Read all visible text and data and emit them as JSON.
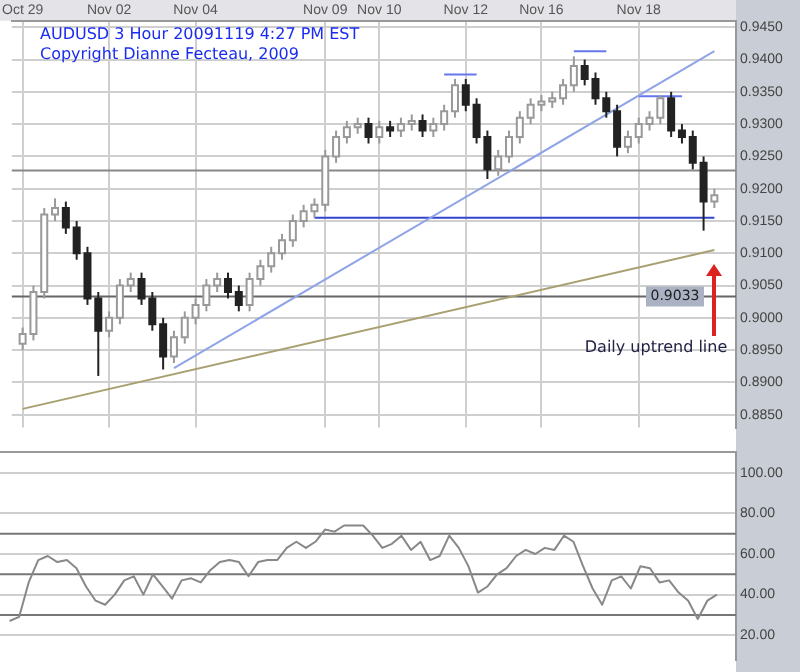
{
  "chart_data": [
    {
      "type": "candlestick",
      "title": "AUDUSD 3 Hour 20091119 4:27 PM EST",
      "subtitle": "Copyright Dianne Fecteau, 2009",
      "categories": [
        "Oct 29",
        null,
        null,
        null,
        null,
        null,
        null,
        null,
        "Nov 02",
        null,
        null,
        null,
        null,
        null,
        null,
        null,
        "Nov 04",
        null,
        null,
        null,
        null,
        null,
        null,
        null,
        null,
        null,
        null,
        null,
        "Nov 09",
        null,
        null,
        null,
        null,
        "Nov 10",
        null,
        null,
        null,
        null,
        null,
        null,
        null,
        "Nov 12",
        null,
        null,
        null,
        null,
        null,
        null,
        "Nov 16",
        null,
        null,
        null,
        null,
        null,
        null,
        null,
        null,
        "Nov 18",
        null,
        null,
        null,
        null,
        null,
        null,
        null
      ],
      "ohlc": [
        [
          0.896,
          0.8985,
          0.895,
          0.8975
        ],
        [
          0.8975,
          0.905,
          0.8965,
          0.904
        ],
        [
          0.904,
          0.917,
          0.903,
          0.916
        ],
        [
          0.916,
          0.9185,
          0.915,
          0.917
        ],
        [
          0.917,
          0.918,
          0.913,
          0.914
        ],
        [
          0.914,
          0.915,
          0.909,
          0.91
        ],
        [
          0.91,
          0.911,
          0.902,
          0.903
        ],
        [
          0.903,
          0.904,
          0.891,
          0.898
        ],
        [
          0.898,
          0.901,
          0.897,
          0.9
        ],
        [
          0.9,
          0.906,
          0.899,
          0.905
        ],
        [
          0.905,
          0.907,
          0.904,
          0.906
        ],
        [
          0.906,
          0.907,
          0.902,
          0.903
        ],
        [
          0.903,
          0.904,
          0.898,
          0.899
        ],
        [
          0.899,
          0.9,
          0.892,
          0.894
        ],
        [
          0.894,
          0.898,
          0.893,
          0.897
        ],
        [
          0.897,
          0.901,
          0.896,
          0.9
        ],
        [
          0.9,
          0.903,
          0.899,
          0.902
        ],
        [
          0.902,
          0.906,
          0.901,
          0.905
        ],
        [
          0.905,
          0.907,
          0.904,
          0.906
        ],
        [
          0.906,
          0.907,
          0.903,
          0.904
        ],
        [
          0.904,
          0.905,
          0.901,
          0.902
        ],
        [
          0.902,
          0.907,
          0.901,
          0.906
        ],
        [
          0.906,
          0.909,
          0.905,
          0.908
        ],
        [
          0.908,
          0.911,
          0.907,
          0.91
        ],
        [
          0.91,
          0.913,
          0.909,
          0.912
        ],
        [
          0.912,
          0.916,
          0.911,
          0.915
        ],
        [
          0.915,
          0.9175,
          0.914,
          0.9165
        ],
        [
          0.9165,
          0.9185,
          0.9155,
          0.9175
        ],
        [
          0.9175,
          0.926,
          0.9165,
          0.925
        ],
        [
          0.925,
          0.929,
          0.924,
          0.928
        ],
        [
          0.928,
          0.9305,
          0.927,
          0.9295
        ],
        [
          0.9295,
          0.931,
          0.9285,
          0.93
        ],
        [
          0.93,
          0.931,
          0.927,
          0.928
        ],
        [
          0.928,
          0.9305,
          0.927,
          0.9295
        ],
        [
          0.9295,
          0.9305,
          0.928,
          0.929
        ],
        [
          0.929,
          0.931,
          0.928,
          0.93
        ],
        [
          0.93,
          0.9315,
          0.929,
          0.9305
        ],
        [
          0.9305,
          0.9315,
          0.928,
          0.929
        ],
        [
          0.929,
          0.931,
          0.928,
          0.93
        ],
        [
          0.93,
          0.933,
          0.929,
          0.932
        ],
        [
          0.932,
          0.937,
          0.931,
          0.936
        ],
        [
          0.936,
          0.937,
          0.932,
          0.933
        ],
        [
          0.933,
          0.934,
          0.927,
          0.928
        ],
        [
          0.928,
          0.929,
          0.9215,
          0.923
        ],
        [
          0.923,
          0.926,
          0.922,
          0.925
        ],
        [
          0.925,
          0.929,
          0.924,
          0.928
        ],
        [
          0.928,
          0.932,
          0.927,
          0.931
        ],
        [
          0.931,
          0.934,
          0.93,
          0.933
        ],
        [
          0.933,
          0.9345,
          0.932,
          0.9335
        ],
        [
          0.9335,
          0.935,
          0.9325,
          0.934
        ],
        [
          0.934,
          0.937,
          0.933,
          0.936
        ],
        [
          0.936,
          0.9405,
          0.935,
          0.939
        ],
        [
          0.939,
          0.94,
          0.936,
          0.937
        ],
        [
          0.937,
          0.938,
          0.933,
          0.934
        ],
        [
          0.934,
          0.935,
          0.931,
          0.932
        ],
        [
          0.932,
          0.933,
          0.925,
          0.9265
        ],
        [
          0.9265,
          0.929,
          0.9255,
          0.928
        ],
        [
          0.928,
          0.931,
          0.927,
          0.93
        ],
        [
          0.93,
          0.932,
          0.929,
          0.931
        ],
        [
          0.931,
          0.9345,
          0.93,
          0.934
        ],
        [
          0.934,
          0.935,
          0.928,
          0.929
        ],
        [
          0.929,
          0.93,
          0.927,
          0.928
        ],
        [
          0.928,
          0.929,
          0.923,
          0.924
        ],
        [
          0.924,
          0.925,
          0.9135,
          0.918
        ],
        [
          0.918,
          0.92,
          0.917,
          0.919
        ]
      ],
      "series": [
        {
          "type": "line",
          "color": "#8fa4e8",
          "values": [
            null,
            null,
            null,
            null,
            null,
            null,
            null,
            null,
            null,
            null,
            null,
            null,
            null,
            null,
            0.8922,
            null,
            null,
            null,
            null,
            null,
            null,
            null,
            null,
            null,
            null,
            null,
            null,
            null,
            null,
            null,
            null,
            null,
            null,
            null,
            null,
            null,
            null,
            null,
            null,
            null,
            null,
            null,
            null,
            null,
            null,
            null,
            null,
            null,
            null,
            null,
            null,
            null,
            null,
            null,
            null,
            null,
            null,
            null,
            null,
            null,
            null,
            null,
            null,
            null,
            0.9413
          ]
        },
        {
          "type": "line",
          "color": "#a8a070",
          "values": [
            0.8859,
            null,
            null,
            null,
            null,
            null,
            null,
            null,
            null,
            null,
            null,
            null,
            null,
            null,
            null,
            null,
            null,
            null,
            null,
            null,
            null,
            null,
            null,
            null,
            null,
            null,
            null,
            null,
            null,
            null,
            null,
            null,
            null,
            null,
            null,
            null,
            null,
            null,
            null,
            null,
            null,
            null,
            null,
            null,
            null,
            null,
            null,
            null,
            null,
            null,
            null,
            null,
            null,
            null,
            null,
            null,
            null,
            null,
            null,
            null,
            null,
            null,
            null,
            null,
            0.9105
          ]
        },
        {
          "type": "line",
          "color": "#3344cc",
          "values": [
            null,
            null,
            null,
            null,
            null,
            null,
            null,
            null,
            null,
            null,
            null,
            null,
            null,
            null,
            null,
            null,
            null,
            null,
            null,
            null,
            null,
            null,
            null,
            null,
            null,
            null,
            null,
            0.9155,
            null,
            null,
            null,
            null,
            null,
            null,
            null,
            null,
            null,
            null,
            null,
            null,
            null,
            null,
            null,
            null,
            null,
            null,
            null,
            null,
            null,
            null,
            null,
            null,
            null,
            null,
            null,
            null,
            null,
            null,
            null,
            null,
            null,
            null,
            null,
            null,
            0.9155
          ]
        },
        {
          "type": "line",
          "color": "#6677ee",
          "values": [
            null,
            null,
            null,
            null,
            null,
            null,
            null,
            null,
            null,
            null,
            null,
            null,
            null,
            null,
            null,
            null,
            null,
            null,
            null,
            null,
            null,
            null,
            null,
            null,
            null,
            null,
            null,
            null,
            null,
            null,
            null,
            null,
            null,
            null,
            null,
            null,
            null,
            null,
            null,
            0.9377,
            null,
            null,
            0.9377,
            null,
            null,
            null,
            null,
            null,
            null,
            null,
            null,
            null,
            null,
            null,
            null,
            null,
            null,
            null,
            null,
            null,
            null,
            null,
            null,
            null,
            null
          ]
        },
        {
          "type": "line",
          "color": "#6677ee",
          "values": [
            null,
            null,
            null,
            null,
            null,
            null,
            null,
            null,
            null,
            null,
            null,
            null,
            null,
            null,
            null,
            null,
            null,
            null,
            null,
            null,
            null,
            null,
            null,
            null,
            null,
            null,
            null,
            null,
            null,
            null,
            null,
            null,
            null,
            null,
            null,
            null,
            null,
            null,
            null,
            null,
            null,
            null,
            null,
            null,
            null,
            null,
            null,
            null,
            null,
            null,
            null,
            0.9413,
            null,
            null,
            0.9413,
            null,
            null,
            null,
            null,
            null,
            null,
            null,
            null,
            null,
            null
          ]
        },
        {
          "type": "line",
          "color": "#6677ee",
          "values": [
            null,
            null,
            null,
            null,
            null,
            null,
            null,
            null,
            null,
            null,
            null,
            null,
            null,
            null,
            null,
            null,
            null,
            null,
            null,
            null,
            null,
            null,
            null,
            null,
            null,
            null,
            null,
            null,
            null,
            null,
            null,
            null,
            null,
            null,
            null,
            null,
            null,
            null,
            null,
            null,
            null,
            null,
            null,
            null,
            null,
            null,
            null,
            null,
            null,
            null,
            null,
            null,
            null,
            null,
            null,
            null,
            null,
            0.9343,
            null,
            null,
            null,
            0.9343,
            null,
            null,
            null
          ]
        }
      ],
      "ylim": [
        0.883,
        0.946
      ],
      "yticks": [
        {
          "value": 0.885,
          "label": "0.8850"
        },
        {
          "value": 0.89,
          "label": "0.8900"
        },
        {
          "value": 0.895,
          "label": "0.8950"
        },
        {
          "value": 0.9,
          "label": "0.9000"
        },
        {
          "value": 0.905,
          "label": "0.9050"
        },
        {
          "value": 0.91,
          "label": "0.9100"
        },
        {
          "value": 0.915,
          "label": "0.9150"
        },
        {
          "value": 0.92,
          "label": "0.9200"
        },
        {
          "value": 0.925,
          "label": "0.9250"
        },
        {
          "value": 0.93,
          "label": "0.9300"
        },
        {
          "value": 0.935,
          "label": "0.9350"
        },
        {
          "value": 0.94,
          "label": "0.9400"
        },
        {
          "value": 0.945,
          "label": "0.9450"
        }
      ],
      "grid": true,
      "ref_lines": [
        {
          "axis": "y",
          "value": 0.9228,
          "color": "#888888"
        },
        {
          "axis": "y",
          "value": 0.9033,
          "label": "0.9033",
          "color": "#666666"
        }
      ],
      "annotations": [
        "Daily uptrend line"
      ]
    },
    {
      "type": "line",
      "color": "#888888",
      "categories": [
        null,
        null,
        null,
        null,
        null,
        null,
        null,
        null,
        null,
        null,
        null,
        null,
        null,
        null,
        null,
        null,
        null,
        null,
        null,
        null,
        null,
        null,
        null,
        null,
        null,
        null,
        null,
        null,
        null,
        null,
        null,
        null,
        null,
        null,
        null,
        null,
        null,
        null,
        null,
        null,
        null,
        null,
        null,
        null,
        null,
        null,
        null,
        null,
        null,
        null,
        null,
        null,
        null,
        null,
        null,
        null,
        null,
        null,
        null,
        null,
        null,
        null,
        null,
        null,
        null,
        null,
        null,
        null,
        null,
        null,
        null,
        null,
        null,
        null,
        null
      ],
      "values": [
        27,
        29,
        46,
        57,
        59,
        56,
        57,
        53,
        44,
        37,
        35,
        40,
        47,
        49,
        40,
        50,
        44,
        38,
        47,
        48,
        46,
        52,
        56,
        57,
        56,
        49,
        56,
        57,
        57,
        63,
        66,
        63,
        66,
        72,
        71,
        74,
        74,
        74,
        69,
        63,
        65,
        69,
        62,
        66,
        57,
        59,
        69,
        63,
        54,
        41,
        44,
        50,
        53,
        59,
        62,
        60,
        63,
        62,
        69,
        66,
        54,
        43,
        35,
        47,
        49,
        43,
        54,
        53,
        46,
        47,
        41,
        37,
        28,
        37,
        40
      ],
      "ylim": [
        8,
        110
      ],
      "yticks": [
        {
          "value": 20,
          "label": "20.00"
        },
        {
          "value": 40,
          "label": "40.00"
        },
        {
          "value": 60,
          "label": "60.00"
        },
        {
          "value": 80,
          "label": "80.00"
        },
        {
          "value": 100,
          "label": "100.00"
        }
      ],
      "grid": "y",
      "tick_labels": "y",
      "ref_lines": [
        {
          "axis": "y",
          "value": 30,
          "color": "#777777"
        },
        {
          "axis": "y",
          "value": 50,
          "color": "#777777"
        },
        {
          "axis": "y",
          "value": 70,
          "color": "#777777"
        }
      ]
    }
  ]
}
